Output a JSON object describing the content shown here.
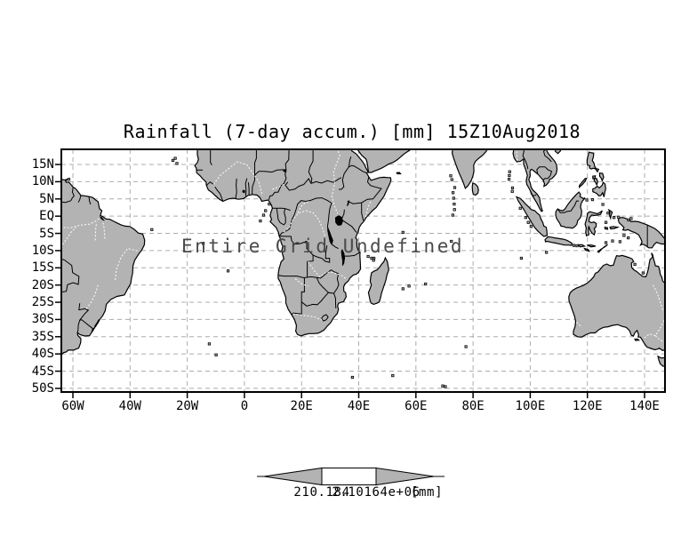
{
  "title": "Rainfall (7-day accum.) [mm] 15Z10Aug2018",
  "overlay_message": "Entire Grid Undefined",
  "colors": {
    "background": "#ffffff",
    "land": "#b3b3b3",
    "coastline": "#000000",
    "border": "#000000",
    "gridline": "#acacac",
    "river": "#ffffff",
    "lake": "#000000",
    "frame": "#000000",
    "tick_text": "#000000",
    "overlay_text": "#4a4a4a"
  },
  "axes": {
    "x_ticks": [
      {
        "label": "60W",
        "lon": -60
      },
      {
        "label": "40W",
        "lon": -40
      },
      {
        "label": "20W",
        "lon": -20
      },
      {
        "label": "0",
        "lon": 0
      },
      {
        "label": "20E",
        "lon": 20
      },
      {
        "label": "40E",
        "lon": 40
      },
      {
        "label": "60E",
        "lon": 60
      },
      {
        "label": "80E",
        "lon": 80
      },
      {
        "label": "100E",
        "lon": 100
      },
      {
        "label": "120E",
        "lon": 120
      },
      {
        "label": "140E",
        "lon": 140
      }
    ],
    "y_ticks": [
      {
        "label": "15N",
        "lat": 15
      },
      {
        "label": "10N",
        "lat": 10
      },
      {
        "label": "5N",
        "lat": 5
      },
      {
        "label": "EQ",
        "lat": 0
      },
      {
        "label": "5S",
        "lat": -5
      },
      {
        "label": "10S",
        "lat": -10
      },
      {
        "label": "15S",
        "lat": -15
      },
      {
        "label": "20S",
        "lat": -20
      },
      {
        "label": "25S",
        "lat": -25
      },
      {
        "label": "30S",
        "lat": -30
      },
      {
        "label": "35S",
        "lat": -35
      },
      {
        "label": "40S",
        "lat": -40
      },
      {
        "label": "45S",
        "lat": -45
      },
      {
        "label": "50S",
        "lat": -50
      }
    ],
    "lon_range": [
      -64.05,
      147.15
    ],
    "lat_range": [
      -51.05,
      19.4
    ],
    "grid_style": "dashed"
  },
  "colorbar": {
    "left_label": "210.184",
    "right_label": "2.10164e+06",
    "unit_label": "[mm]",
    "segment_colors": [
      "#b3b3b3",
      "#ffffff",
      "#b3b3b3"
    ]
  }
}
